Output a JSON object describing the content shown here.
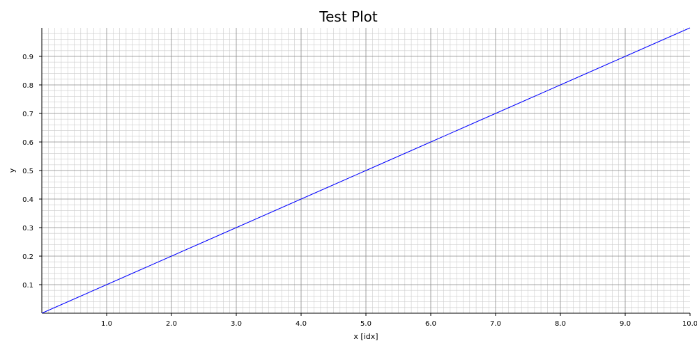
{
  "chart_data": {
    "type": "line",
    "title": "Test Plot",
    "xlabel": "x [idx]",
    "ylabel": "y",
    "xlim": [
      0,
      10
    ],
    "ylim": [
      0,
      1
    ],
    "x_ticks": [
      "1.0",
      "2.0",
      "3.0",
      "4.0",
      "5.0",
      "6.0",
      "7.0",
      "8.0",
      "9.0",
      "10.0"
    ],
    "y_ticks": [
      "0.1",
      "0.2",
      "0.3",
      "0.4",
      "0.5",
      "0.6",
      "0.7",
      "0.8",
      "0.9"
    ],
    "grid": true,
    "grid_minor": true,
    "series": [
      {
        "color": "#0000ff",
        "x": [
          0,
          0.5,
          1,
          1.5,
          2,
          2.5,
          3,
          3.5,
          4,
          4.5,
          5,
          5.5,
          6,
          6.5,
          7,
          7.5,
          8,
          8.5,
          9,
          9.5,
          10
        ],
        "y": [
          0,
          0.05,
          0.1,
          0.15,
          0.2,
          0.25,
          0.3,
          0.35,
          0.4,
          0.45,
          0.5,
          0.55,
          0.6,
          0.65,
          0.7,
          0.75,
          0.8,
          0.85,
          0.9,
          0.95,
          1.0
        ]
      }
    ]
  }
}
